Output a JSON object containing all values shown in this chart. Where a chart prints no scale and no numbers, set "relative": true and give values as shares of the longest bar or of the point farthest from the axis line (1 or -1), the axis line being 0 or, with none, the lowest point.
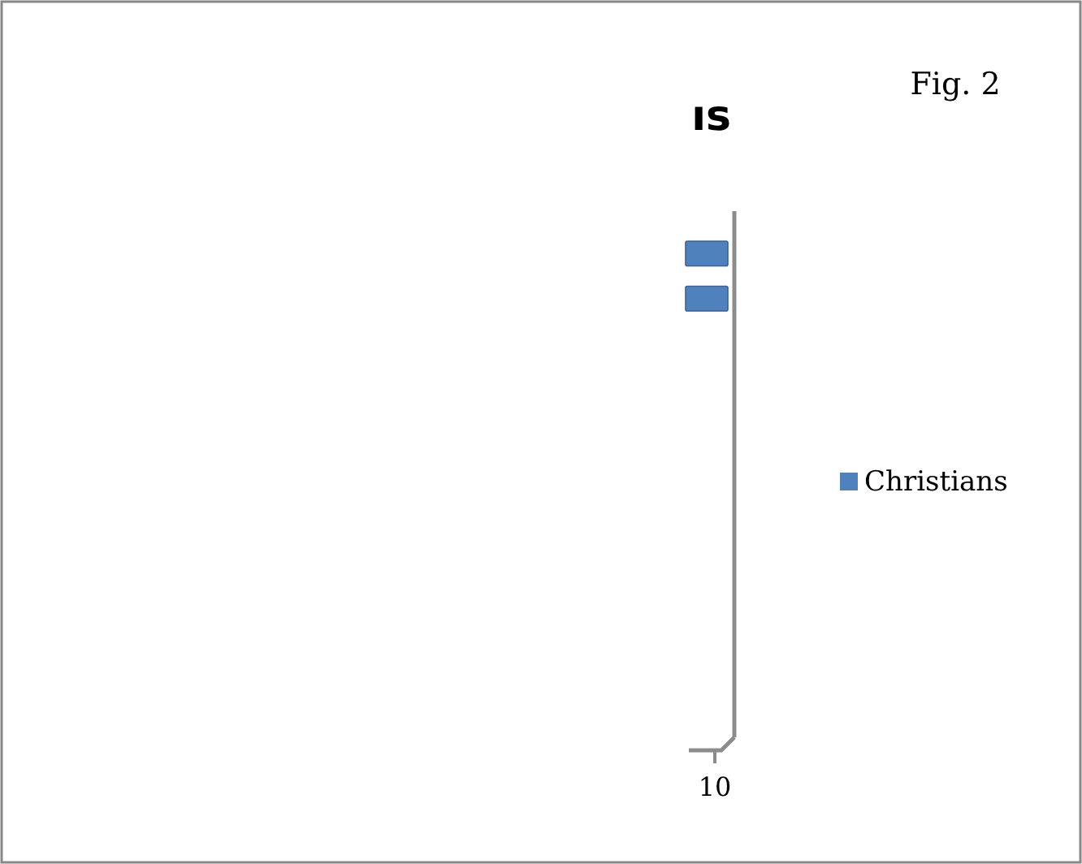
{
  "chart_data": {
    "type": "bar",
    "orientation": "horizontal",
    "relative": true,
    "title": "ıs",
    "annotations": [
      "Fig. 2",
      "10"
    ],
    "categories": [
      null,
      null
    ],
    "series": [
      {
        "name": "Christians",
        "color": "#4f81bd",
        "values": [
          1,
          1
        ]
      }
    ],
    "legend": "right"
  }
}
